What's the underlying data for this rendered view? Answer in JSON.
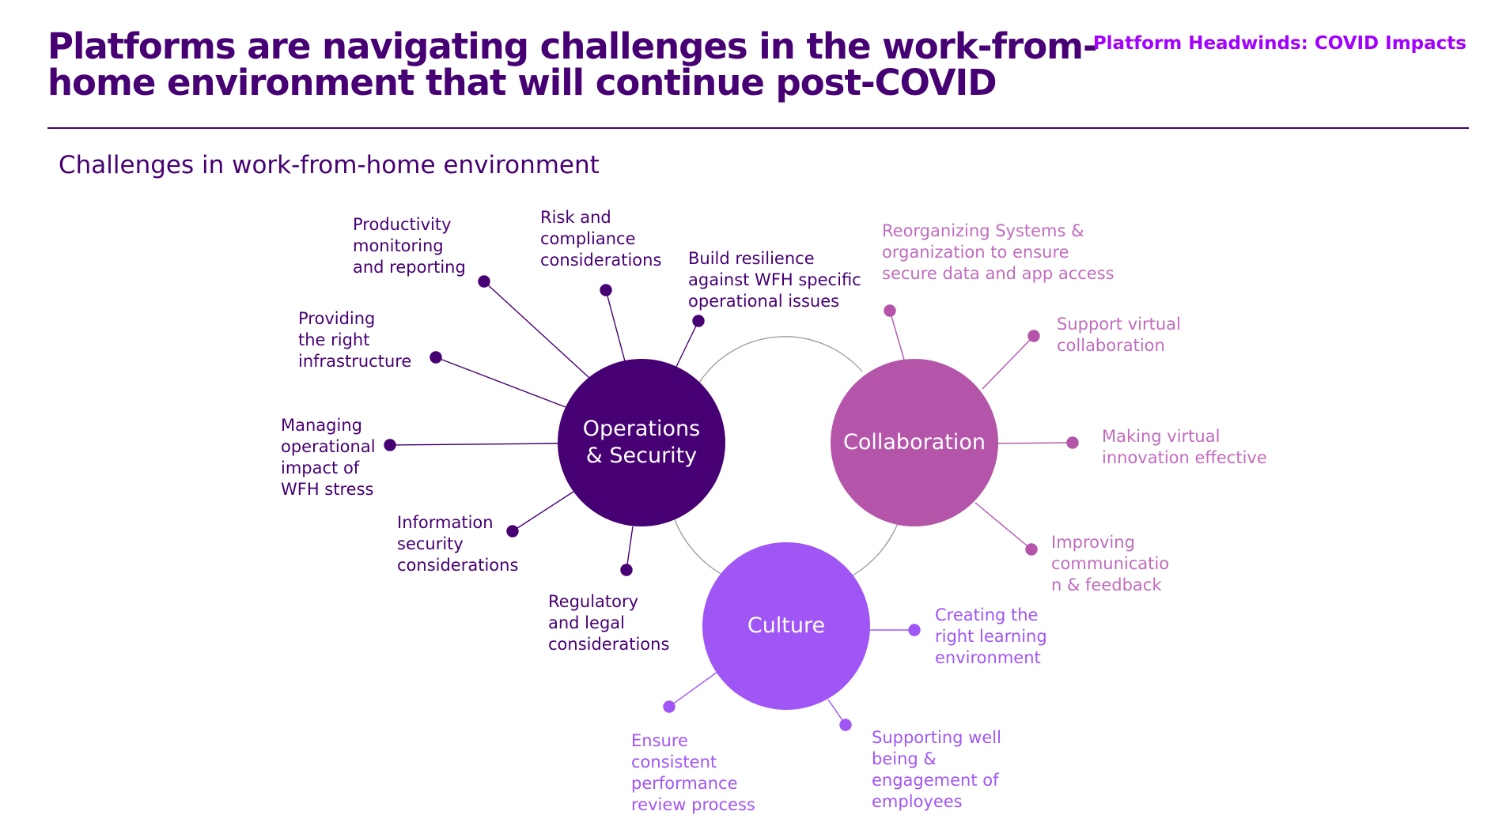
{
  "header": {
    "title": "Platforms are navigating challenges in the work-from-home environment that will continue post-COVID",
    "section_label": "Platform Headwinds: COVID Impacts",
    "subtitle": "Challenges in work-from-home environment"
  },
  "colors": {
    "ops": "#460073",
    "collaboration": "#b455aa",
    "collaboration_text": "#c06cbd",
    "culture": "#a055f5",
    "accent": "#a100ff"
  },
  "hubs": {
    "ops": "Operations\n& Security",
    "collaboration": "Collaboration",
    "culture": "Culture"
  },
  "ops_labels": {
    "productivity": "Productivity\nmonitoring\nand reporting",
    "risk": "Risk and\ncompliance\nconsiderations",
    "resilience": "Build resilience\nagainst WFH specific\noperational issues",
    "infrastructure": "Providing\nthe right\ninfrastructure",
    "stress": "Managing\noperational\nimpact of\nWFH stress",
    "infosec": "Information\nsecurity\nconsiderations",
    "regulatory": "Regulatory\nand legal\nconsiderations"
  },
  "collab_labels": {
    "reorganizing": "Reorganizing Systems &\norganization to ensure\nsecure data and app access",
    "virtual_collab": "Support virtual\ncollaboration",
    "innovation": "Making virtual\ninnovation effective",
    "communication": "Improving\ncommunicatio\nn & feedback"
  },
  "culture_labels": {
    "learning": "Creating the\nright learning\nenvironment",
    "wellbeing": "Supporting well\nbeing &\nengagement of\nemployees",
    "performance": "Ensure\nconsistent\nperformance\nreview process"
  }
}
